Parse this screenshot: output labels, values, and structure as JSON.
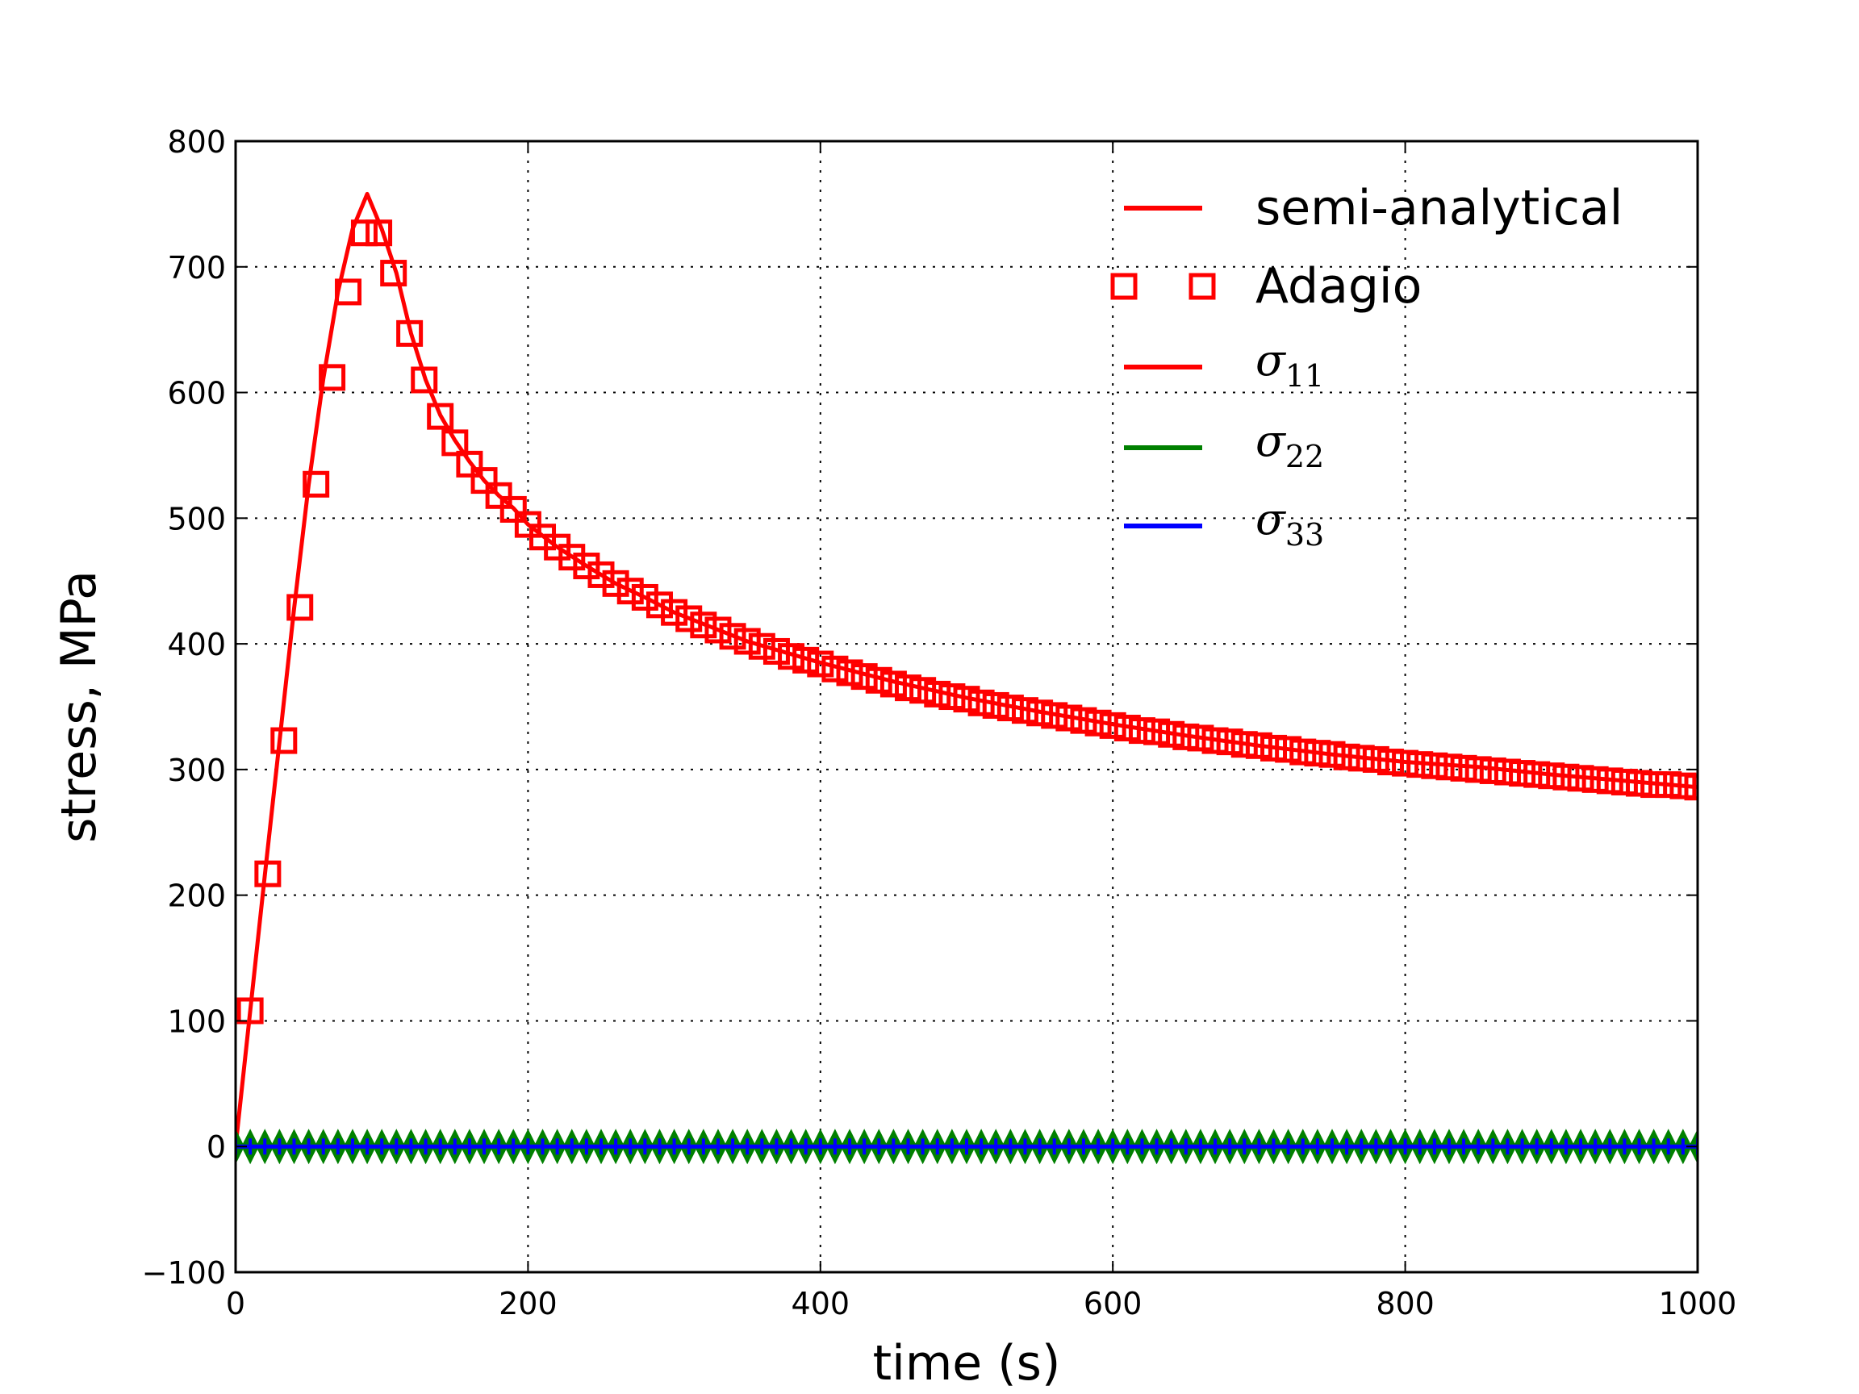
{
  "chart_data": {
    "type": "line",
    "xlabel": "time (s)",
    "ylabel": "stress, MPa",
    "xlim": [
      0,
      1000
    ],
    "ylim": [
      -100,
      800
    ],
    "xticks": [
      0,
      200,
      400,
      600,
      800,
      1000
    ],
    "yticks": [
      -100,
      0,
      100,
      200,
      300,
      400,
      500,
      600,
      700,
      800
    ],
    "xtick_labels": [
      "0",
      "200",
      "400",
      "600",
      "800",
      "1000"
    ],
    "ytick_labels": [
      "−100",
      "0",
      "100",
      "200",
      "300",
      "400",
      "500",
      "600",
      "700",
      "800"
    ],
    "grid": true,
    "legend_position": "top-right",
    "legend": [
      {
        "label": "semi-analytical",
        "kind": "line",
        "color": "#ff0000"
      },
      {
        "label": "Adagio",
        "kind": "square-marker",
        "color": "#ff0000"
      },
      {
        "label": "σ",
        "sub": "11",
        "kind": "line",
        "color": "#ff0000"
      },
      {
        "label": "σ",
        "sub": "22",
        "kind": "line",
        "color": "#008000"
      },
      {
        "label": "σ",
        "sub": "33",
        "kind": "line",
        "color": "#0000ff"
      }
    ],
    "series": [
      {
        "name": "semi-analytical σ₁₁",
        "style": "line",
        "color": "#ff0000",
        "x": [
          0,
          10,
          20,
          30,
          40,
          50,
          60,
          70,
          80,
          90,
          100,
          110,
          120,
          130,
          140,
          150,
          160,
          170,
          180,
          190,
          200,
          220,
          240,
          260,
          280,
          300,
          350,
          400,
          450,
          500,
          550,
          600,
          650,
          700,
          750,
          800,
          850,
          900,
          950,
          1000
        ],
        "y": [
          0,
          108,
          216,
          322,
          428,
          527,
          611,
          680,
          730,
          758,
          730,
          695,
          647,
          610,
          582,
          562,
          545,
          530,
          518,
          508,
          495,
          477,
          462,
          448,
          437,
          425,
          402,
          385,
          370,
          357,
          346,
          336,
          327,
          319,
          312,
          306,
          302,
          296,
          291,
          286
        ]
      },
      {
        "name": "Adagio σ₁₁",
        "style": "square-marker",
        "color": "#ff0000",
        "x": [
          10,
          22,
          33,
          44,
          55,
          66,
          77,
          88,
          98,
          108,
          119,
          129,
          140,
          150,
          160,
          170,
          180,
          190,
          200,
          210,
          220,
          230,
          240,
          250,
          260,
          270,
          280,
          290,
          300,
          310,
          320,
          330,
          340,
          350,
          360,
          370,
          380,
          390,
          400,
          410,
          420,
          430,
          440,
          450,
          460,
          470,
          480,
          490,
          500,
          510,
          520,
          530,
          540,
          550,
          560,
          570,
          580,
          590,
          600,
          610,
          620,
          630,
          640,
          650,
          660,
          670,
          680,
          690,
          700,
          710,
          720,
          730,
          740,
          750,
          760,
          770,
          780,
          790,
          800,
          810,
          820,
          830,
          840,
          850,
          860,
          870,
          880,
          890,
          900,
          910,
          920,
          930,
          940,
          950,
          960,
          970,
          980,
          990,
          1000
        ],
        "y": [
          108,
          217,
          323,
          429,
          527,
          612,
          680,
          727,
          727,
          695,
          647,
          610,
          581,
          560,
          543,
          530,
          518,
          507,
          495,
          485,
          477,
          469,
          462,
          455,
          448,
          442,
          437,
          431,
          425,
          420,
          415,
          411,
          406,
          402,
          398,
          394,
          390,
          387,
          384,
          380,
          377,
          374,
          371,
          368,
          365,
          363,
          360,
          358,
          356,
          353,
          351,
          349,
          347,
          345,
          343,
          341,
          339,
          337,
          335,
          333,
          331,
          330,
          328,
          326,
          325,
          323,
          322,
          320,
          319,
          317,
          316,
          314,
          313,
          312,
          310,
          309,
          308,
          306,
          305,
          304,
          303,
          302,
          301,
          300,
          299,
          298,
          297,
          296,
          295,
          294,
          293,
          292,
          291,
          290,
          289,
          288,
          288,
          287,
          286
        ]
      },
      {
        "name": "σ₂₂",
        "style": "line-with-diamonds",
        "color": "#008000",
        "x_start": 0,
        "x_end": 1000,
        "x_step": 10,
        "value": 0
      },
      {
        "name": "σ₃₃",
        "style": "line-with-plus",
        "color": "#0000ff",
        "x_start": 0,
        "x_end": 1000,
        "x_step": 10,
        "value": 0
      }
    ]
  }
}
